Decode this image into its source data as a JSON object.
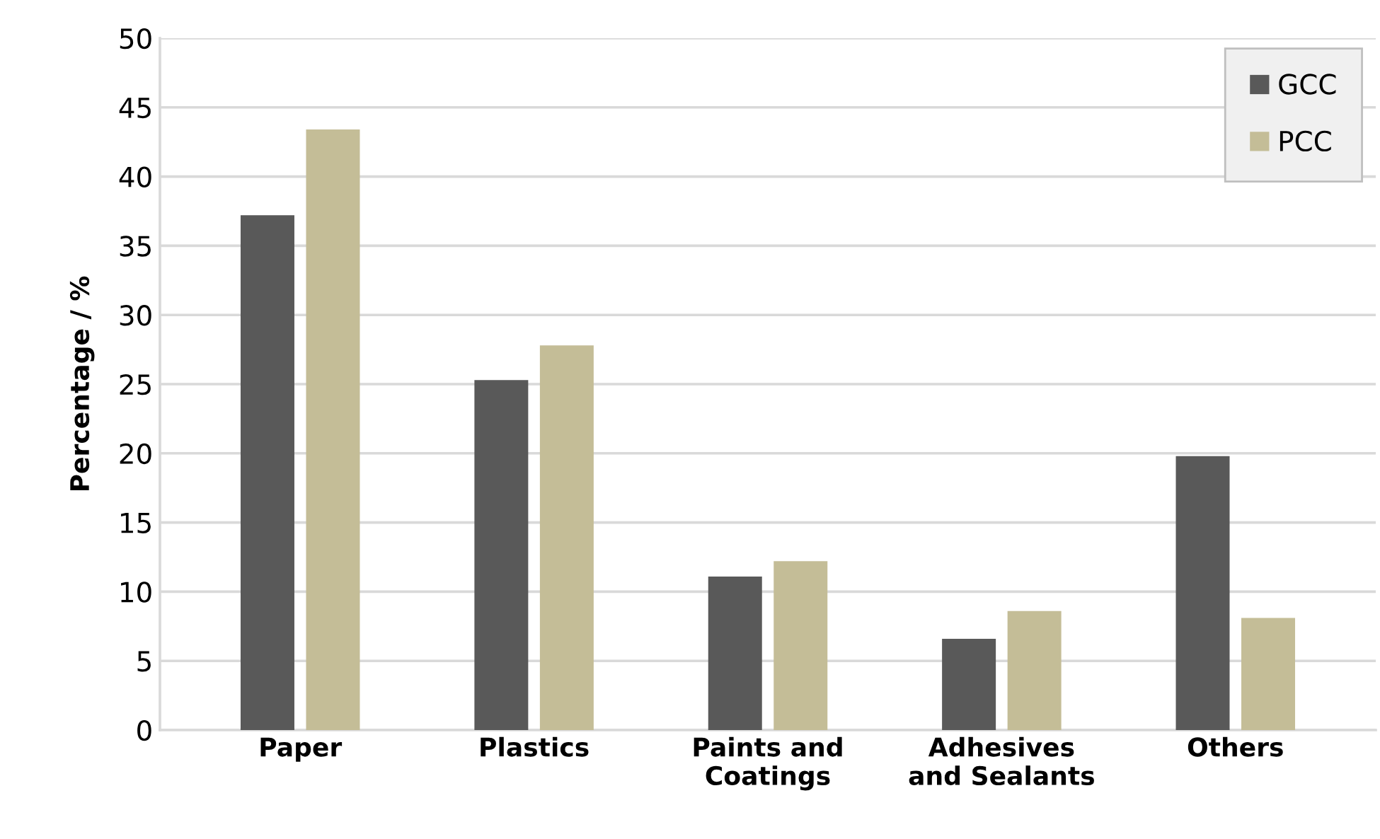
{
  "chart_data": {
    "type": "bar",
    "ylabel": "Percentage / %",
    "categories": [
      "Paper",
      "Plastics",
      "Paints and\nCoatings",
      "Adhesives\nand Sealants",
      "Others"
    ],
    "series": [
      {
        "name": "GCC",
        "color": "#595959",
        "values": [
          37.2,
          25.3,
          11.1,
          6.6,
          19.8
        ]
      },
      {
        "name": "PCC",
        "color": "#c4bd97",
        "values": [
          43.4,
          27.8,
          12.2,
          8.6,
          8.1
        ]
      }
    ],
    "ylim": [
      0,
      50
    ],
    "yticks": [
      0,
      5,
      10,
      15,
      20,
      25,
      30,
      35,
      40,
      45,
      50
    ],
    "grid": "y",
    "legend": "top right"
  }
}
